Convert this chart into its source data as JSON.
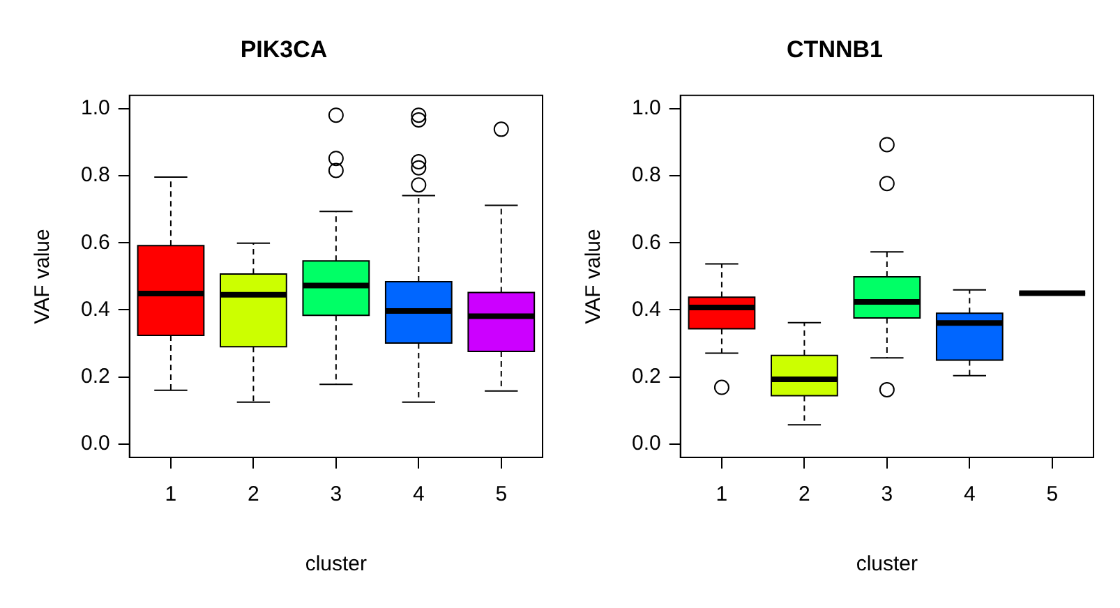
{
  "chart_data": [
    {
      "type": "box",
      "title": "PIK3CA",
      "xlabel": "cluster",
      "ylabel": "VAF value",
      "categories": [
        "1",
        "2",
        "3",
        "4",
        "5"
      ],
      "colors": [
        "#ff0000",
        "#ccff00",
        "#00ff66",
        "#0066ff",
        "#cc00ff"
      ],
      "ylim": [
        -0.04,
        1.04
      ],
      "yticks": [
        {
          "value": 0,
          "label": "0.0"
        },
        {
          "value": 0.2,
          "label": "0.2"
        },
        {
          "value": 0.4,
          "label": "0.4"
        },
        {
          "value": 0.6,
          "label": "0.6"
        },
        {
          "value": 0.8,
          "label": "0.8"
        },
        {
          "value": 1,
          "label": "1.0"
        }
      ],
      "boxes": [
        {
          "low": 0.16,
          "q1": 0.324,
          "median": 0.449,
          "q3": 0.592,
          "high": 0.796
        },
        {
          "low": 0.125,
          "q1": 0.29,
          "median": 0.445,
          "q3": 0.507,
          "high": 0.599
        },
        {
          "low": 0.178,
          "q1": 0.384,
          "median": 0.473,
          "q3": 0.546,
          "high": 0.694,
          "outliers": [
            0.981,
            0.852,
            0.816
          ]
        },
        {
          "low": 0.125,
          "q1": 0.301,
          "median": 0.397,
          "q3": 0.484,
          "high": 0.741,
          "outliers": [
            0.981,
            0.967,
            0.842,
            0.824,
            0.773
          ]
        },
        {
          "low": 0.158,
          "q1": 0.276,
          "median": 0.381,
          "q3": 0.452,
          "high": 0.712,
          "outliers": [
            0.939
          ]
        }
      ]
    },
    {
      "type": "box",
      "title": "CTNNB1",
      "xlabel": "cluster",
      "ylabel": "VAF value",
      "categories": [
        "1",
        "2",
        "3",
        "4",
        "5"
      ],
      "colors": [
        "#ff0000",
        "#ccff00",
        "#00ff66",
        "#0066ff",
        "#000000"
      ],
      "ylim": [
        -0.04,
        1.04
      ],
      "yticks": [
        {
          "value": 0,
          "label": "0.0"
        },
        {
          "value": 0.2,
          "label": "0.2"
        },
        {
          "value": 0.4,
          "label": "0.4"
        },
        {
          "value": 0.6,
          "label": "0.6"
        },
        {
          "value": 0.8,
          "label": "0.8"
        },
        {
          "value": 1,
          "label": "1.0"
        }
      ],
      "boxes": [
        {
          "low": 0.271,
          "q1": 0.344,
          "median": 0.407,
          "q3": 0.438,
          "high": 0.537,
          "outliers": [
            0.169
          ]
        },
        {
          "low": 0.057,
          "q1": 0.144,
          "median": 0.193,
          "q3": 0.264,
          "high": 0.362
        },
        {
          "low": 0.257,
          "q1": 0.376,
          "median": 0.424,
          "q3": 0.499,
          "high": 0.573,
          "outliers": [
            0.893,
            0.777,
            0.162
          ]
        },
        {
          "low": 0.204,
          "q1": 0.25,
          "median": 0.361,
          "q3": 0.39,
          "high": 0.46
        },
        {
          "low": 0.45,
          "q1": 0.45,
          "median": 0.45,
          "q3": 0.45,
          "high": 0.45
        }
      ]
    }
  ]
}
